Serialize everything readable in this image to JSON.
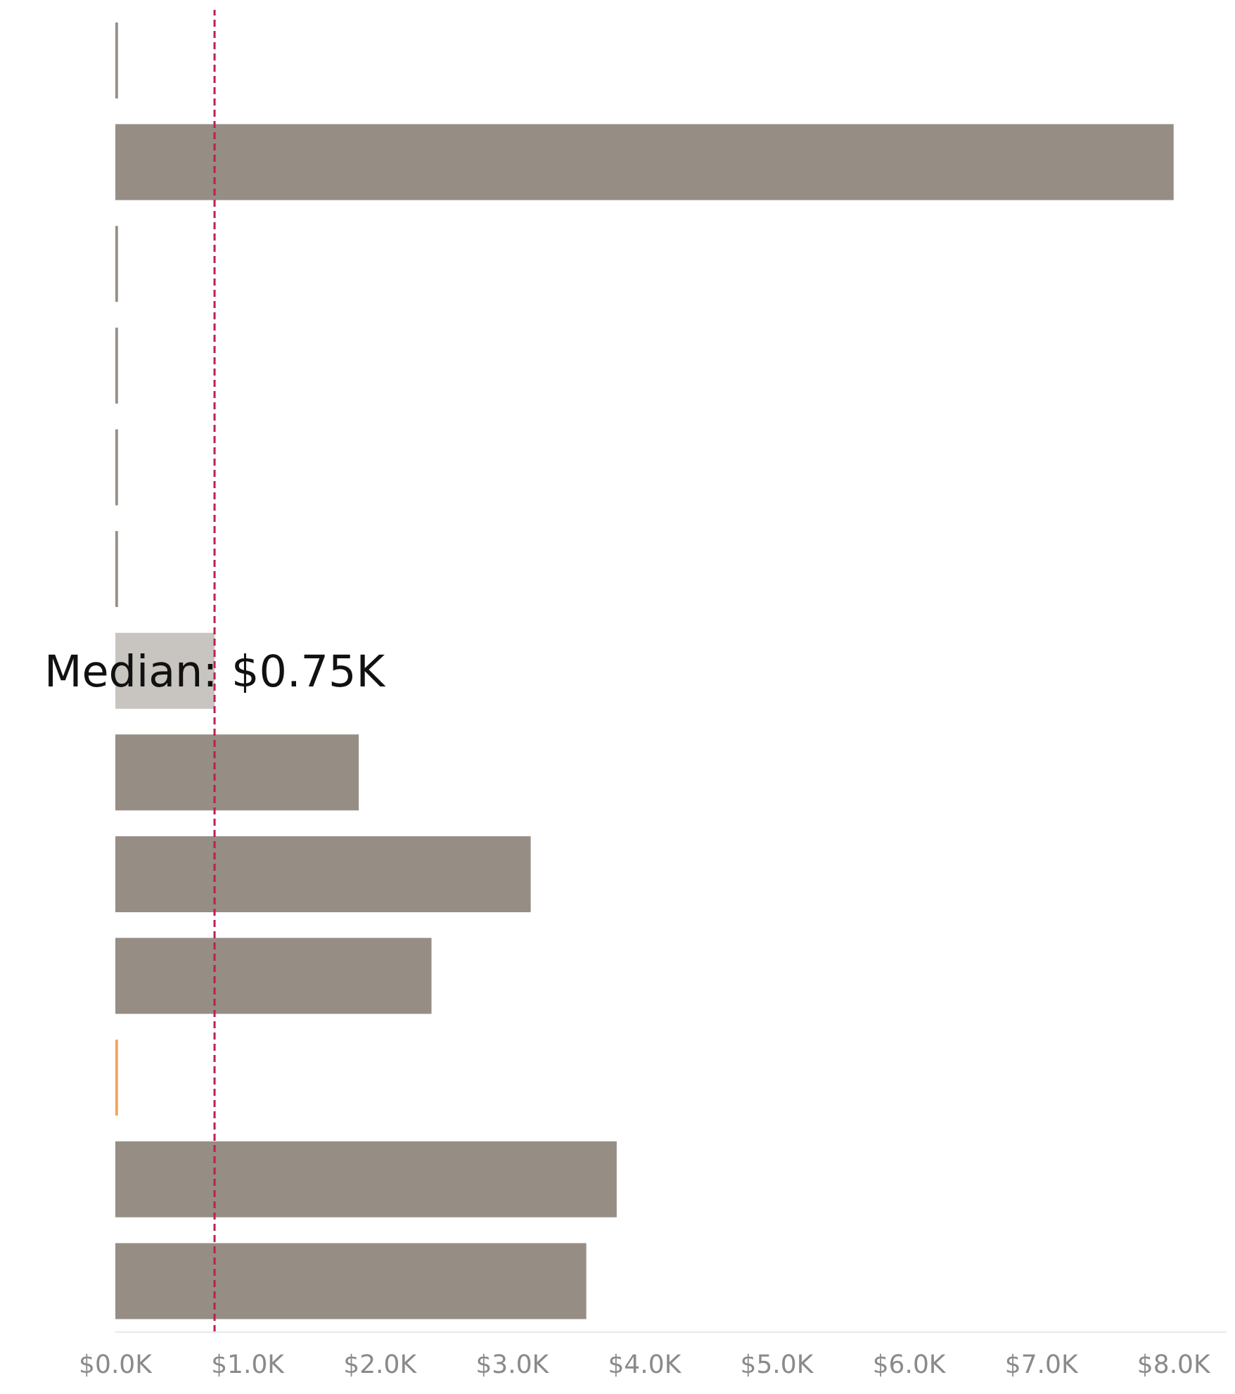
{
  "chart_data": {
    "type": "bar",
    "orientation": "horizontal",
    "categories": [
      null,
      null,
      null,
      null,
      null,
      null,
      null,
      null,
      null,
      null,
      null,
      null,
      null
    ],
    "values": [
      0.02,
      8.0,
      0.02,
      0.02,
      0.02,
      0.02,
      0.75,
      1.84,
      3.14,
      2.39,
      0.02,
      3.79,
      3.56
    ],
    "colors": [
      "#968e85",
      "#968e85",
      "#968e85",
      "#968e85",
      "#968e85",
      "#968e85",
      "#c8c5c0",
      "#968e85",
      "#968e85",
      "#968e85",
      "#f4a259",
      "#968e85",
      "#968e85"
    ],
    "xlim": [
      0,
      8.4
    ],
    "xticks": [
      {
        "value": 0,
        "label": "$0.0K"
      },
      {
        "value": 1,
        "label": "$1.0K"
      },
      {
        "value": 2,
        "label": "$2.0K"
      },
      {
        "value": 3,
        "label": "$3.0K"
      },
      {
        "value": 4,
        "label": "$4.0K"
      },
      {
        "value": 5,
        "label": "$5.0K"
      },
      {
        "value": 6,
        "label": "$6.0K"
      },
      {
        "value": 7,
        "label": "$7.0K"
      },
      {
        "value": 8,
        "label": "$8.0K"
      }
    ],
    "tick_labels": "x",
    "grid": false,
    "ref_lines": [
      {
        "axis": "x",
        "value": 0.75,
        "label": "Median: $0.75K",
        "color": "#be1e52",
        "line_style": "dashed"
      }
    ]
  }
}
